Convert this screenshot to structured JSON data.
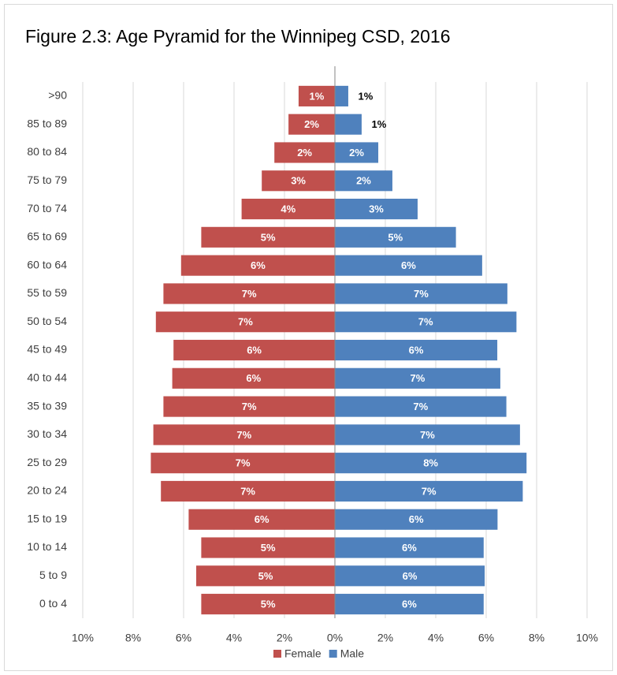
{
  "chart_data": {
    "type": "pyramid",
    "title": "Figure 2.3: Age Pyramid for the Winnipeg CSD, 2016",
    "categories": [
      ">90",
      "85 to 89",
      "80 to 84",
      "75 to 79",
      "70 to 74",
      "65 to 69",
      "60 to 64",
      "55 to 59",
      "50 to 54",
      "45 to 49",
      "40 to 44",
      "35 to 39",
      "30 to 34",
      "25 to 29",
      "20 to 24",
      "15 to 19",
      "10 to 14",
      "5 to 9",
      "0 to 4"
    ],
    "series": [
      {
        "name": "Female",
        "color": "#c0504d",
        "values": [
          1.44,
          1.84,
          2.4,
          2.9,
          3.7,
          5.3,
          6.1,
          6.8,
          7.1,
          6.4,
          6.45,
          6.8,
          7.2,
          7.3,
          6.9,
          5.8,
          5.3,
          5.5,
          5.3
        ],
        "value_labels": [
          "1%",
          "2%",
          "2%",
          "3%",
          "4%",
          "5%",
          "6%",
          "7%",
          "7%",
          "6%",
          "6%",
          "7%",
          "7%",
          "7%",
          "7%",
          "6%",
          "5%",
          "5%",
          "5%"
        ]
      },
      {
        "name": "Male",
        "color": "#4f81bd",
        "values": [
          0.53,
          1.06,
          1.72,
          2.28,
          3.28,
          4.8,
          5.84,
          6.84,
          7.2,
          6.44,
          6.56,
          6.8,
          7.34,
          7.6,
          7.45,
          6.45,
          5.9,
          5.94,
          5.9
        ],
        "value_labels": [
          "1%",
          "1%",
          "2%",
          "2%",
          "3%",
          "5%",
          "6%",
          "7%",
          "7%",
          "6%",
          "7%",
          "7%",
          "7%",
          "8%",
          "7%",
          "6%",
          "6%",
          "6%",
          "6%"
        ]
      }
    ],
    "xlim": [
      -10,
      10
    ],
    "xticks": [
      {
        "value": -10,
        "label": "10%"
      },
      {
        "value": -8,
        "label": "8%"
      },
      {
        "value": -6,
        "label": "6%"
      },
      {
        "value": -4,
        "label": "4%"
      },
      {
        "value": -2,
        "label": "2%"
      },
      {
        "value": 0,
        "label": "0%"
      },
      {
        "value": 2,
        "label": "2%"
      },
      {
        "value": 4,
        "label": "4%"
      },
      {
        "value": 6,
        "label": "6%"
      },
      {
        "value": 8,
        "label": "8%"
      },
      {
        "value": 10,
        "label": "10%"
      }
    ],
    "grid": true,
    "legend": "bottom"
  }
}
